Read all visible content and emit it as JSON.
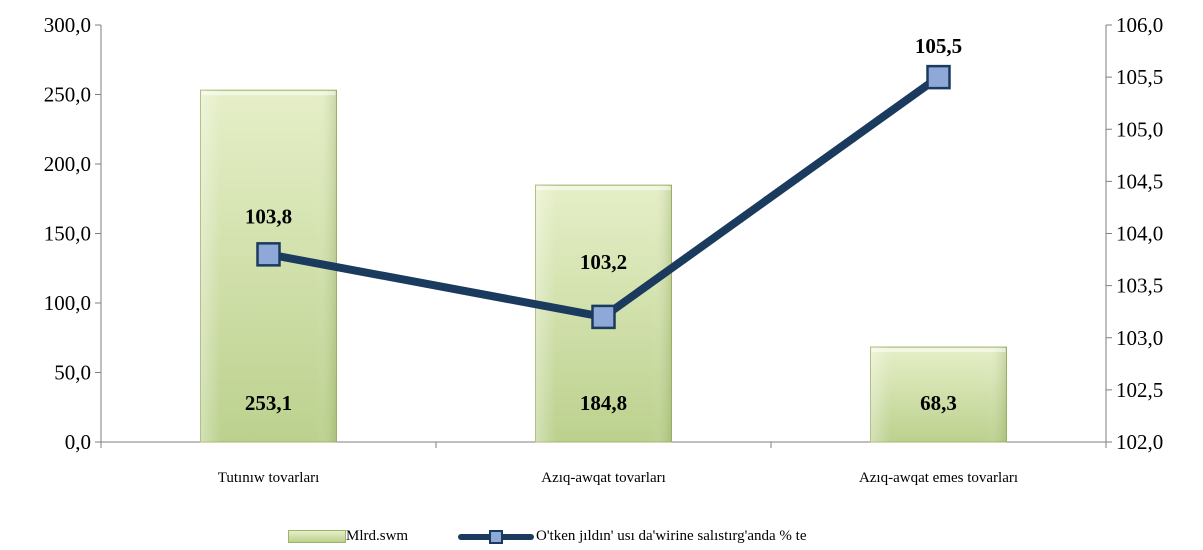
{
  "chart_data": {
    "type": "bar",
    "categories": [
      "Tutınıw tovarları",
      "Azıq-awqat tovarları",
      "Azıq-awqat emes tovarları"
    ],
    "series": [
      {
        "name": "Mlrd.swm",
        "type": "bar",
        "axis": "left",
        "values": [
          253.1,
          184.8,
          68.3
        ],
        "labels": [
          "253,1",
          "184,8",
          "68,3"
        ]
      },
      {
        "name": "O'tken jıldın' usı da'wirine salıstırg'anda  % te",
        "type": "line",
        "axis": "right",
        "values": [
          103.8,
          103.2,
          105.5
        ],
        "labels": [
          "103,8",
          "103,2",
          "105,5"
        ]
      }
    ],
    "y_left": {
      "range": [
        0,
        300
      ],
      "ticks": [
        "0,0",
        "50,0",
        "100,0",
        "150,0",
        "200,0",
        "250,0",
        "300,0"
      ]
    },
    "y_right": {
      "range": [
        102,
        106
      ],
      "ticks": [
        "102,0",
        "102,5",
        "103,0",
        "103,5",
        "104,0",
        "104,5",
        "105,0",
        "105,5",
        "106,0"
      ]
    },
    "grid": false,
    "legend_position": "bottom",
    "colors": {
      "bar_top": "#e6efc8",
      "bar_bottom": "#bcd18e",
      "bar_border": "#9fb46a",
      "line": "#1a3a5e",
      "marker_fill": "#8ea9d8"
    }
  }
}
